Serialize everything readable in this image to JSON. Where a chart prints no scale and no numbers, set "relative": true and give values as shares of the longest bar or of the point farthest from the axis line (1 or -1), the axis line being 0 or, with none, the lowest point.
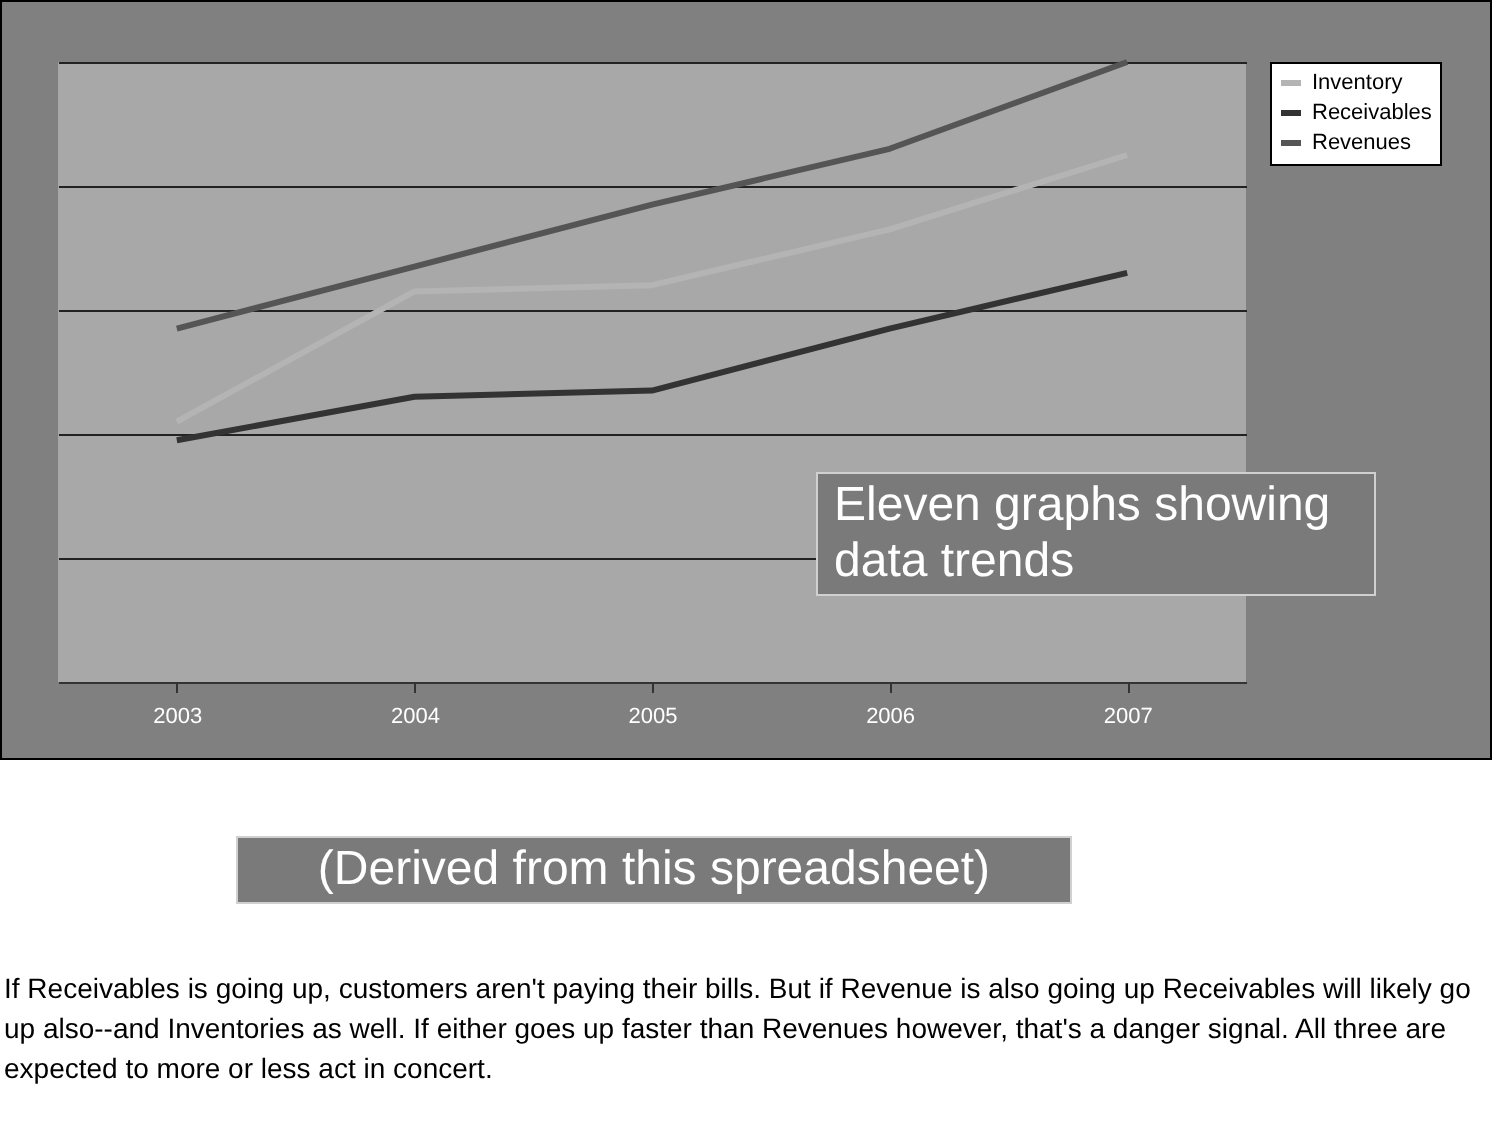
{
  "chart_data": {
    "type": "line",
    "relative": true,
    "categories": [
      "2003",
      "2004",
      "2005",
      "2006",
      "2007"
    ],
    "series": [
      {
        "name": "Inventory",
        "color": "#b4b4b4",
        "values": [
          0.42,
          0.63,
          0.64,
          0.73,
          0.85
        ]
      },
      {
        "name": "Receivables",
        "color": "#333333",
        "values": [
          0.39,
          0.46,
          0.47,
          0.57,
          0.66
        ]
      },
      {
        "name": "Revenues",
        "color": "#555555",
        "values": [
          0.57,
          0.67,
          0.77,
          0.86,
          1
        ]
      }
    ],
    "grid": "y",
    "legend": "right",
    "marker": "none",
    "line_style": "solid",
    "annotations": [
      "Eleven graphs showing data trends",
      "(Derived from this spreadsheet)",
      "If Receivables is going up, customers aren't paying their bills.  But if Revenue is also going up Receivables will likely go up also--and Inventories as well.  If either goes up faster than Revenues however, that's a danger signal. All three are expected to more or less act in concert."
    ]
  }
}
